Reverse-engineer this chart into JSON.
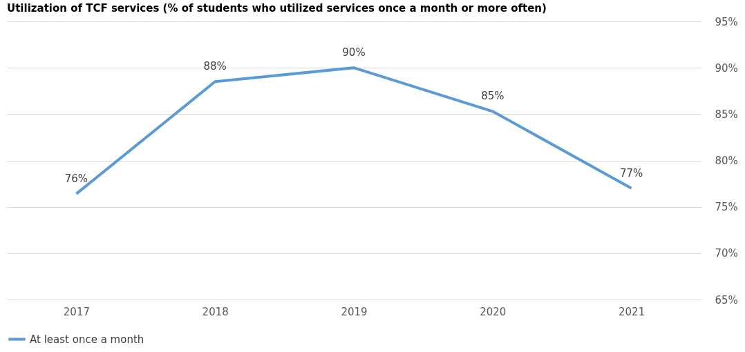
{
  "chart_data": {
    "type": "line",
    "title": "Utilization of TCF services (% of students who utilized services once a month or more often)",
    "categories": [
      "2017",
      "2018",
      "2019",
      "2020",
      "2021"
    ],
    "series": [
      {
        "name": "At least once a month",
        "color": "#5b9bd5",
        "values": [
          76.4,
          88.5,
          90,
          85.3,
          77
        ],
        "value_labels": [
          "76%",
          "88%",
          "90%",
          "85%",
          "77%"
        ]
      }
    ],
    "ylim": [
      65,
      95
    ],
    "yticks": [
      {
        "value": 65,
        "label": "65%"
      },
      {
        "value": 70,
        "label": "70%"
      },
      {
        "value": 75,
        "label": "75%"
      },
      {
        "value": 80,
        "label": "80%"
      },
      {
        "value": 85,
        "label": "85%"
      },
      {
        "value": 90,
        "label": "90%"
      },
      {
        "value": 95,
        "label": "95%"
      }
    ],
    "grid": "y",
    "legend": "bottom",
    "marker": "none",
    "line_style": "solid"
  }
}
